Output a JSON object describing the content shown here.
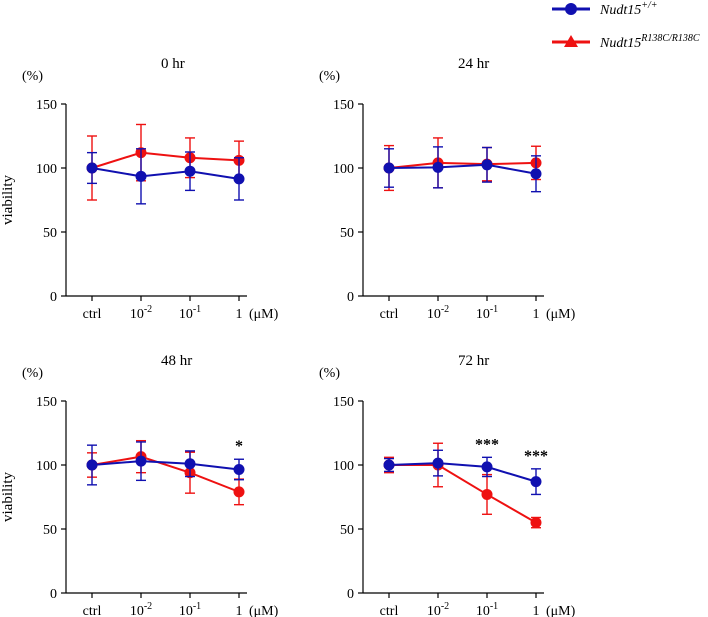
{
  "legend": {
    "wt_label": "Nudt15",
    "wt_sup": "+/+",
    "mut_label": "Nudt15",
    "mut_sup": "R138C/R138C"
  },
  "colors": {
    "wt": "#1010b0",
    "mut": "#ee1111",
    "axis": "#000000"
  },
  "chart_data": [
    {
      "type": "line",
      "title": "0 hr",
      "ylabel": "viability",
      "yunit": "(%)",
      "ylim": [
        0,
        150
      ],
      "yticks": [
        "0",
        "50",
        "100",
        "150"
      ],
      "categories": [
        "ctrl",
        "10",
        "10",
        "1"
      ],
      "category_exponents": [
        "",
        "-2",
        "-1",
        ""
      ],
      "xunit": "(μM)",
      "series": [
        {
          "name": "Nudt15+/+",
          "values": [
            100,
            93.5,
            97.5,
            91.5
          ],
          "errors": [
            12,
            21.5,
            15,
            16.5
          ]
        },
        {
          "name": "Nudt15R138C/R138C",
          "values": [
            100,
            112,
            108,
            106
          ],
          "errors": [
            25,
            22,
            15.5,
            15
          ]
        }
      ],
      "annotations": [
        "",
        "",
        "",
        ""
      ]
    },
    {
      "type": "line",
      "title": "24 hr",
      "ylabel": "",
      "yunit": "(%)",
      "ylim": [
        0,
        150
      ],
      "yticks": [
        "0",
        "50",
        "100",
        "150"
      ],
      "categories": [
        "ctrl",
        "10",
        "10",
        "1"
      ],
      "category_exponents": [
        "",
        "-2",
        "-1",
        ""
      ],
      "xunit": "(μM)",
      "series": [
        {
          "name": "Nudt15+/+",
          "values": [
            100,
            100.5,
            102.5,
            95.5
          ],
          "errors": [
            15,
            16,
            13.5,
            14
          ]
        },
        {
          "name": "Nudt15R138C/R138C",
          "values": [
            100,
            104,
            103,
            104
          ],
          "errors": [
            17.5,
            19.5,
            13,
            13
          ]
        }
      ],
      "annotations": [
        "",
        "",
        "",
        ""
      ]
    },
    {
      "type": "line",
      "title": "48 hr",
      "ylabel": "viability",
      "yunit": "(%)",
      "ylim": [
        0,
        150
      ],
      "yticks": [
        "0",
        "50",
        "100",
        "150"
      ],
      "categories": [
        "ctrl",
        "10",
        "10",
        "1"
      ],
      "category_exponents": [
        "",
        "-2",
        "-1",
        ""
      ],
      "xunit": "(μM)",
      "series": [
        {
          "name": "Nudt15+/+",
          "values": [
            100,
            103,
            101,
            96.5
          ],
          "errors": [
            15.5,
            15,
            10,
            8
          ]
        },
        {
          "name": "Nudt15R138C/R138C",
          "values": [
            100,
            106.5,
            94,
            79
          ],
          "errors": [
            9.5,
            12.5,
            16,
            10
          ]
        }
      ],
      "annotations": [
        "",
        "",
        "",
        "*"
      ]
    },
    {
      "type": "line",
      "title": "72 hr",
      "ylabel": "",
      "yunit": "(%)",
      "ylim": [
        0,
        150
      ],
      "yticks": [
        "0",
        "50",
        "100",
        "150"
      ],
      "categories": [
        "ctrl",
        "10",
        "10",
        "1"
      ],
      "category_exponents": [
        "",
        "-2",
        "-1",
        ""
      ],
      "xunit": "(μM)",
      "series": [
        {
          "name": "Nudt15+/+",
          "values": [
            100,
            101.5,
            98.5,
            87
          ],
          "errors": [
            5,
            10,
            7.5,
            10
          ]
        },
        {
          "name": "Nudt15R138C/R138C",
          "values": [
            100,
            100,
            77,
            55
          ],
          "errors": [
            6,
            17,
            15.5,
            4
          ]
        }
      ],
      "annotations": [
        "",
        "",
        "***",
        "***"
      ]
    }
  ]
}
